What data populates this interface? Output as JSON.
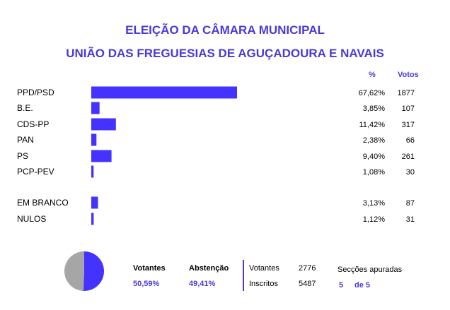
{
  "title_line1": "ELEIÇÃO DA CÂMARA MUNICIPAL",
  "title_line2": "UNIÃO DAS FREGUESIAS DE AGUÇADOURA E NAVAIS",
  "col_pct": "%",
  "col_votos": "Votos",
  "chart_data": {
    "type": "bar",
    "orientation": "horizontal",
    "categories": [
      "PPD/PSD",
      "B.E.",
      "CDS-PP",
      "PAN",
      "PS",
      "PCP-PEV",
      "EM BRANCO",
      "NULOS"
    ],
    "values": [
      67.62,
      3.85,
      11.42,
      2.38,
      9.4,
      1.08,
      3.13,
      1.12
    ],
    "pct_labels": [
      "67,62%",
      "3,85%",
      "11,42%",
      "2,38%",
      "9,40%",
      "1,08%",
      "3,13%",
      "1,12%"
    ],
    "votes": [
      "1877",
      "107",
      "317",
      "66",
      "261",
      "30",
      "87",
      "31"
    ],
    "bar_color": "#4433ff",
    "grid": false
  },
  "summary": {
    "pie": {
      "votantes_pct": 50.59,
      "abstencao_pct": 49.41,
      "votantes_color": "#4433ff",
      "abstencao_color": "#a6a6a6"
    },
    "votantes_label": "Votantes",
    "votantes_pct": "50,59%",
    "abstencao_label": "Abstenção",
    "abstencao_pct": "49,41%",
    "votantes_count_label": "Votantes",
    "votantes_count": "2776",
    "inscritos_label": "Inscritos",
    "inscritos_count": "5487",
    "seccoes_label": "Secções apuradas",
    "seccoes_done": "5",
    "seccoes_total": "de 5"
  }
}
